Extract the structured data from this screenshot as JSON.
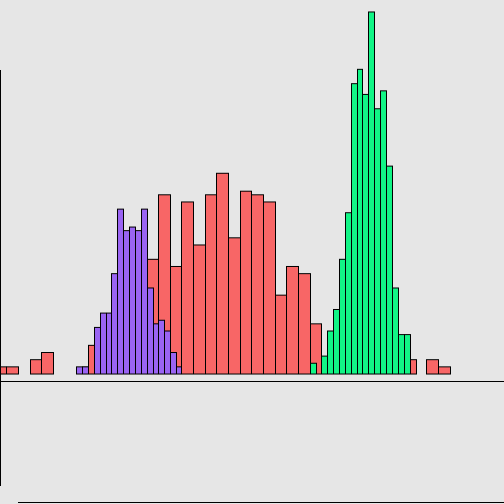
{
  "chart_data": {
    "type": "bar",
    "title": "",
    "xlabel": "",
    "ylabel": "",
    "grid": false,
    "legend": "none",
    "xlim": [
      0,
      504
    ],
    "ylim": [
      -18.2,
      52.1
    ],
    "series": [
      {
        "name": "",
        "color": "#f86666",
        "bins": [
          {
            "x0": 0,
            "x1": 6,
            "v": 1
          },
          {
            "x0": 6,
            "x1": 18,
            "v": 1
          },
          {
            "x0": 30,
            "x1": 41,
            "v": 2
          },
          {
            "x0": 41,
            "x1": 53,
            "v": 3
          },
          {
            "x0": 82,
            "x1": 88,
            "v": 1
          },
          {
            "x0": 88,
            "x1": 94,
            "v": 4
          },
          {
            "x0": 146,
            "x1": 158,
            "v": 16
          },
          {
            "x0": 158,
            "x1": 170,
            "v": 25
          },
          {
            "x0": 170,
            "x1": 181,
            "v": 15
          },
          {
            "x0": 181,
            "x1": 193,
            "v": 24
          },
          {
            "x0": 193,
            "x1": 205,
            "v": 18
          },
          {
            "x0": 205,
            "x1": 216,
            "v": 25
          },
          {
            "x0": 216,
            "x1": 228,
            "v": 28
          },
          {
            "x0": 228,
            "x1": 240,
            "v": 19
          },
          {
            "x0": 240,
            "x1": 251,
            "v": 25.5
          },
          {
            "x0": 251,
            "x1": 263,
            "v": 25
          },
          {
            "x0": 263,
            "x1": 275,
            "v": 24
          },
          {
            "x0": 275,
            "x1": 286,
            "v": 11
          },
          {
            "x0": 286,
            "x1": 298,
            "v": 15
          },
          {
            "x0": 298,
            "x1": 310,
            "v": 14
          },
          {
            "x0": 310,
            "x1": 321,
            "v": 7
          },
          {
            "x0": 408,
            "x1": 416,
            "v": 2
          },
          {
            "x0": 426,
            "x1": 438,
            "v": 2
          },
          {
            "x0": 438,
            "x1": 450,
            "v": 1
          }
        ]
      },
      {
        "name": "",
        "color": "#9a64f3",
        "bins": [
          {
            "x0": 76,
            "x1": 82,
            "v": 1
          },
          {
            "x0": 82,
            "x1": 88,
            "v": 1
          },
          {
            "x0": 94,
            "x1": 100,
            "v": 6.5
          },
          {
            "x0": 100,
            "x1": 106,
            "v": 8.5
          },
          {
            "x0": 106,
            "x1": 111,
            "v": 8.5
          },
          {
            "x0": 111,
            "x1": 117,
            "v": 14
          },
          {
            "x0": 117,
            "x1": 123,
            "v": 23
          },
          {
            "x0": 123,
            "x1": 129,
            "v": 20
          },
          {
            "x0": 129,
            "x1": 135,
            "v": 20.5
          },
          {
            "x0": 135,
            "x1": 141,
            "v": 20
          },
          {
            "x0": 141,
            "x1": 147,
            "v": 23
          },
          {
            "x0": 147,
            "x1": 153,
            "v": 12
          },
          {
            "x0": 153,
            "x1": 158,
            "v": 7
          },
          {
            "x0": 158,
            "x1": 164,
            "v": 7.5
          },
          {
            "x0": 164,
            "x1": 170,
            "v": 6
          },
          {
            "x0": 170,
            "x1": 176,
            "v": 3
          },
          {
            "x0": 176,
            "x1": 181,
            "v": 1
          }
        ]
      },
      {
        "name": "",
        "color": "#12f586",
        "bins": [
          {
            "x0": 310,
            "x1": 316,
            "v": 1.5
          },
          {
            "x0": 321,
            "x1": 327,
            "v": 2.5
          },
          {
            "x0": 327,
            "x1": 333,
            "v": 6
          },
          {
            "x0": 333,
            "x1": 339,
            "v": 9
          },
          {
            "x0": 339,
            "x1": 345,
            "v": 16
          },
          {
            "x0": 345,
            "x1": 351,
            "v": 22.5
          },
          {
            "x0": 351,
            "x1": 357,
            "v": 40.5
          },
          {
            "x0": 357,
            "x1": 362,
            "v": 42.5
          },
          {
            "x0": 362,
            "x1": 368,
            "v": 39
          },
          {
            "x0": 368,
            "x1": 374,
            "v": 50.5
          },
          {
            "x0": 374,
            "x1": 380,
            "v": 37
          },
          {
            "x0": 380,
            "x1": 386,
            "v": 39.5
          },
          {
            "x0": 386,
            "x1": 392,
            "v": 29
          },
          {
            "x0": 392,
            "x1": 398,
            "v": 12
          },
          {
            "x0": 398,
            "x1": 404,
            "v": 5.5
          },
          {
            "x0": 404,
            "x1": 410,
            "v": 5.5
          }
        ]
      }
    ]
  }
}
